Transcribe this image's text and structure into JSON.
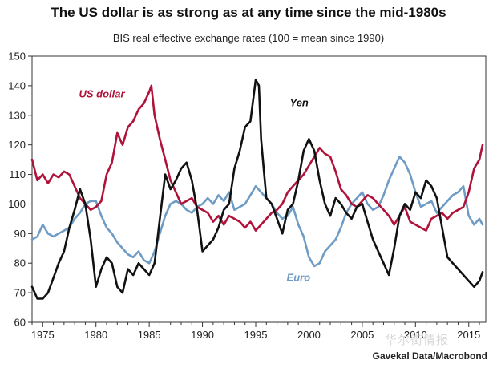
{
  "chart_data": {
    "type": "line",
    "title": "The US dollar is as strong as at any time since the mid-1980s",
    "subtitle": "BIS real effective exchange rates (100 = mean since 1990)",
    "source": "Gavekal Data/Macrobond",
    "watermark": "华尔街情报",
    "xlim": [
      1974,
      2016.6
    ],
    "ylim": [
      60,
      150
    ],
    "x_ticks": [
      1975,
      1980,
      1985,
      1990,
      1995,
      2000,
      2005,
      2010,
      2015
    ],
    "y_ticks": [
      60,
      70,
      80,
      90,
      100,
      110,
      120,
      130,
      140,
      150
    ],
    "reference_line": 100,
    "series": [
      {
        "name": "US dollar",
        "color": "#b0123a",
        "x": [
          1974.0,
          1974.5,
          1975.0,
          1975.5,
          1976.0,
          1976.5,
          1977.0,
          1977.5,
          1978.0,
          1978.5,
          1979.0,
          1979.5,
          1980.0,
          1980.5,
          1981.0,
          1981.5,
          1982.0,
          1982.5,
          1983.0,
          1983.5,
          1984.0,
          1984.5,
          1985.0,
          1985.2,
          1985.5,
          1986.0,
          1986.5,
          1987.0,
          1987.5,
          1988.0,
          1988.5,
          1989.0,
          1989.5,
          1990.0,
          1990.5,
          1991.0,
          1991.5,
          1992.0,
          1992.5,
          1993.0,
          1993.5,
          1994.0,
          1994.5,
          1995.0,
          1995.5,
          1996.0,
          1996.5,
          1997.0,
          1997.5,
          1998.0,
          1998.5,
          1999.0,
          1999.5,
          2000.0,
          2000.5,
          2001.0,
          2001.5,
          2002.0,
          2002.5,
          2003.0,
          2003.5,
          2004.0,
          2004.5,
          2005.0,
          2005.5,
          2006.0,
          2006.5,
          2007.0,
          2007.5,
          2008.0,
          2008.5,
          2009.0,
          2009.5,
          2010.0,
          2010.5,
          2011.0,
          2011.5,
          2012.0,
          2012.5,
          2013.0,
          2013.5,
          2014.0,
          2014.5,
          2015.0,
          2015.5,
          2016.0,
          2016.3
        ],
        "values": [
          115,
          108,
          110,
          107,
          110,
          109,
          111,
          110,
          106,
          102,
          100,
          98,
          99,
          101,
          110,
          114,
          124,
          120,
          126,
          128,
          132,
          134,
          138,
          140,
          130,
          122,
          115,
          108,
          104,
          100,
          101,
          102,
          99,
          98,
          97,
          94,
          96,
          93,
          96,
          95,
          94,
          92,
          94,
          91,
          93,
          95,
          97,
          98,
          100,
          104,
          106,
          108,
          110,
          113,
          116,
          119,
          117,
          116,
          111,
          105,
          103,
          100,
          99,
          101,
          103,
          102,
          100,
          98,
          96,
          93,
          96,
          99,
          94,
          93,
          92,
          91,
          95,
          96,
          97,
          95,
          97,
          98,
          99,
          104,
          112,
          115,
          120
        ]
      },
      {
        "name": "Yen",
        "color": "#111111",
        "x": [
          1974.0,
          1974.5,
          1975.0,
          1975.5,
          1976.0,
          1976.5,
          1977.0,
          1977.5,
          1978.0,
          1978.5,
          1979.0,
          1979.5,
          1980.0,
          1980.5,
          1981.0,
          1981.5,
          1982.0,
          1982.5,
          1983.0,
          1983.5,
          1984.0,
          1984.5,
          1985.0,
          1985.5,
          1986.0,
          1986.5,
          1987.0,
          1987.5,
          1988.0,
          1988.5,
          1989.0,
          1989.5,
          1990.0,
          1990.5,
          1991.0,
          1991.5,
          1992.0,
          1992.5,
          1993.0,
          1993.5,
          1994.0,
          1994.5,
          1995.0,
          1995.3,
          1995.5,
          1995.8,
          1996.0,
          1996.5,
          1997.0,
          1997.5,
          1998.0,
          1998.5,
          1999.0,
          1999.5,
          2000.0,
          2000.5,
          2001.0,
          2001.5,
          2002.0,
          2002.5,
          2003.0,
          2003.5,
          2004.0,
          2004.5,
          2005.0,
          2005.5,
          2006.0,
          2006.5,
          2007.0,
          2007.5,
          2008.0,
          2008.5,
          2009.0,
          2009.5,
          2010.0,
          2010.5,
          2011.0,
          2011.5,
          2012.0,
          2012.5,
          2013.0,
          2013.5,
          2014.0,
          2014.5,
          2015.0,
          2015.5,
          2016.0,
          2016.3
        ],
        "values": [
          72,
          68,
          68,
          70,
          75,
          80,
          84,
          92,
          98,
          105,
          100,
          88,
          72,
          78,
          82,
          80,
          72,
          70,
          78,
          76,
          80,
          78,
          76,
          80,
          95,
          110,
          105,
          108,
          112,
          114,
          108,
          98,
          84,
          86,
          88,
          92,
          98,
          100,
          112,
          118,
          126,
          128,
          142,
          140,
          122,
          110,
          102,
          100,
          95,
          90,
          98,
          100,
          108,
          118,
          122,
          118,
          108,
          100,
          96,
          102,
          100,
          97,
          95,
          99,
          100,
          94,
          88,
          84,
          80,
          76,
          85,
          96,
          100,
          98,
          104,
          102,
          108,
          106,
          102,
          92,
          82,
          80,
          78,
          76,
          74,
          72,
          74,
          77
        ]
      },
      {
        "name": "Euro",
        "color": "#6f9cc4",
        "x": [
          1974.0,
          1974.5,
          1975.0,
          1975.5,
          1976.0,
          1976.5,
          1977.0,
          1977.5,
          1978.0,
          1978.5,
          1979.0,
          1979.5,
          1980.0,
          1980.5,
          1981.0,
          1981.5,
          1982.0,
          1982.5,
          1983.0,
          1983.5,
          1984.0,
          1984.5,
          1985.0,
          1985.5,
          1986.0,
          1986.5,
          1987.0,
          1987.5,
          1988.0,
          1988.5,
          1989.0,
          1989.5,
          1990.0,
          1990.5,
          1991.0,
          1991.5,
          1992.0,
          1992.5,
          1993.0,
          1993.5,
          1994.0,
          1994.5,
          1995.0,
          1995.5,
          1996.0,
          1996.5,
          1997.0,
          1997.5,
          1998.0,
          1998.5,
          1999.0,
          1999.5,
          2000.0,
          2000.5,
          2001.0,
          2001.5,
          2002.0,
          2002.5,
          2003.0,
          2003.5,
          2004.0,
          2004.5,
          2005.0,
          2005.5,
          2006.0,
          2006.5,
          2007.0,
          2007.5,
          2008.0,
          2008.5,
          2009.0,
          2009.5,
          2010.0,
          2010.5,
          2011.0,
          2011.5,
          2012.0,
          2012.5,
          2013.0,
          2013.5,
          2014.0,
          2014.5,
          2015.0,
          2015.5,
          2016.0,
          2016.3
        ],
        "values": [
          88,
          89,
          93,
          90,
          89,
          90,
          91,
          92,
          95,
          97,
          100,
          101,
          101,
          96,
          92,
          90,
          87,
          85,
          83,
          82,
          84,
          81,
          80,
          84,
          90,
          96,
          100,
          101,
          100,
          98,
          97,
          99,
          100,
          102,
          100,
          103,
          101,
          104,
          98,
          99,
          100,
          103,
          106,
          104,
          102,
          100,
          97,
          95,
          96,
          99,
          93,
          89,
          82,
          79,
          80,
          84,
          86,
          88,
          92,
          97,
          100,
          102,
          104,
          100,
          98,
          99,
          103,
          108,
          112,
          116,
          114,
          110,
          104,
          99,
          100,
          101,
          97,
          99,
          101,
          103,
          104,
          106,
          96,
          93,
          95,
          93
        ]
      }
    ],
    "annotations": [
      {
        "text": "US dollar",
        "x": 1978.4,
        "y": 136,
        "series": "US dollar"
      },
      {
        "text": "Yen",
        "x": 1998.2,
        "y": 133,
        "series": "Yen"
      },
      {
        "text": "Euro",
        "x": 1997.9,
        "y": 74,
        "series": "Euro"
      }
    ]
  }
}
